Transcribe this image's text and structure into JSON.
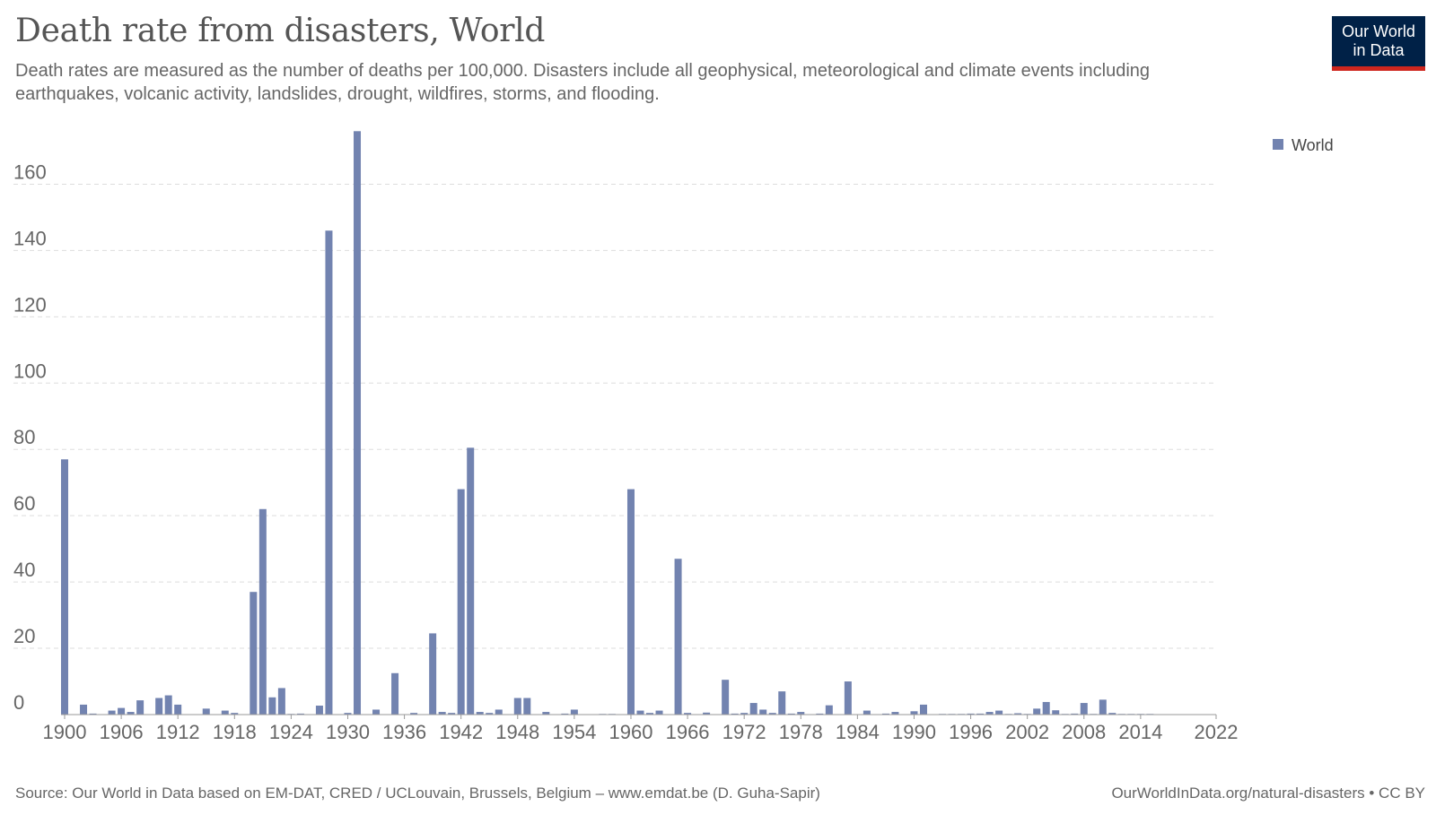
{
  "header": {
    "title": "Death rate from disasters, World",
    "subtitle": "Death rates are measured as the number of deaths per 100,000. Disasters include all geophysical, meteorological and climate events including earthquakes, volcanic activity, landslides, drought, wildfires, storms, and flooding.",
    "logo_line1": "Our World",
    "logo_line2": "in Data"
  },
  "footer": {
    "source": "Source: Our World in Data based on EM-DAT, CRED / UCLouvain, Brussels, Belgium – www.emdat.be (D. Guha-Sapir)",
    "credit": "OurWorldInData.org/natural-disasters • CC BY"
  },
  "chart_data": {
    "type": "bar",
    "title": "Death rate from disasters, World",
    "xlabel": "",
    "ylabel": "",
    "xlim": [
      1900,
      2022
    ],
    "ylim": [
      0,
      175
    ],
    "yticks": [
      0,
      20,
      40,
      60,
      80,
      100,
      120,
      140,
      160
    ],
    "xticks": [
      1900,
      1906,
      1912,
      1918,
      1924,
      1930,
      1936,
      1942,
      1948,
      1954,
      1960,
      1966,
      1972,
      1978,
      1984,
      1990,
      1996,
      2002,
      2008,
      2014,
      2022
    ],
    "grid": true,
    "legend": "top-right",
    "color": "#7283b0",
    "series": [
      {
        "name": "World",
        "x": [
          1900,
          1901,
          1902,
          1903,
          1904,
          1905,
          1906,
          1907,
          1908,
          1909,
          1910,
          1911,
          1912,
          1913,
          1914,
          1915,
          1916,
          1917,
          1918,
          1919,
          1920,
          1921,
          1922,
          1923,
          1924,
          1925,
          1926,
          1927,
          1928,
          1929,
          1930,
          1931,
          1932,
          1933,
          1934,
          1935,
          1936,
          1937,
          1938,
          1939,
          1940,
          1941,
          1942,
          1943,
          1944,
          1945,
          1946,
          1947,
          1948,
          1949,
          1950,
          1951,
          1952,
          1953,
          1954,
          1955,
          1956,
          1957,
          1958,
          1959,
          1960,
          1961,
          1962,
          1963,
          1964,
          1965,
          1966,
          1967,
          1968,
          1969,
          1970,
          1971,
          1972,
          1973,
          1974,
          1975,
          1976,
          1977,
          1978,
          1979,
          1980,
          1981,
          1982,
          1983,
          1984,
          1985,
          1986,
          1987,
          1988,
          1989,
          1990,
          1991,
          1992,
          1993,
          1994,
          1995,
          1996,
          1997,
          1998,
          1999,
          2000,
          2001,
          2002,
          2003,
          2004,
          2005,
          2006,
          2007,
          2008,
          2009,
          2010,
          2011,
          2012,
          2013,
          2014,
          2015,
          2016,
          2017,
          2018,
          2019,
          2020,
          2021
        ],
        "values": [
          77,
          0,
          3,
          0.3,
          0,
          1.2,
          2,
          0.8,
          4.3,
          0,
          5,
          5.8,
          3,
          0,
          0,
          1.8,
          0,
          1.2,
          0.5,
          0,
          37,
          62,
          5.2,
          8,
          0.2,
          0.3,
          0,
          2.7,
          146,
          0,
          0.5,
          176,
          0,
          1.5,
          0,
          12.5,
          0,
          0.5,
          0,
          24.5,
          0.8,
          0.5,
          68,
          80.5,
          0.8,
          0.5,
          1.5,
          0,
          5,
          5,
          0,
          0.8,
          0.1,
          0.3,
          1.5,
          0,
          0,
          0.2,
          0.2,
          0,
          68,
          1.2,
          0.5,
          1.2,
          0,
          47,
          0.5,
          0,
          0.6,
          0,
          10.5,
          0.3,
          0.5,
          3.5,
          1.5,
          0.5,
          7,
          0.3,
          0.8,
          0,
          0.3,
          2.8,
          0,
          10,
          0,
          1.2,
          0,
          0.3,
          0.8,
          0,
          1,
          3,
          0,
          0.2,
          0.2,
          0.2,
          0.3,
          0.3,
          0.8,
          1.2,
          0.2,
          0.4,
          0.2,
          1.8,
          3.8,
          1.3,
          0.2,
          0.3,
          3.5,
          0.2,
          4.5,
          0.5,
          0.2,
          0.2,
          0.2,
          0.2,
          0,
          0,
          0,
          0,
          0,
          0
        ]
      }
    ]
  }
}
